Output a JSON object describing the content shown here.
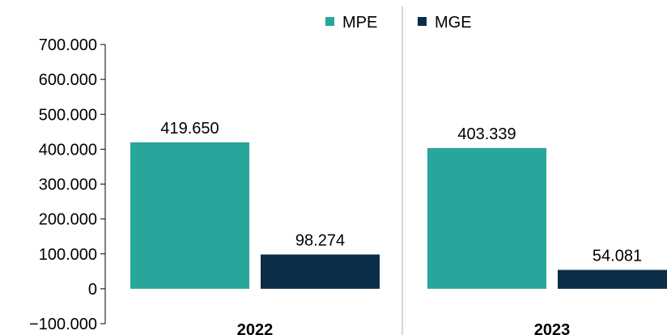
{
  "chart_data": {
    "type": "bar",
    "categories": [
      "2022",
      "2023"
    ],
    "series": [
      {
        "name": "MPE",
        "color": "#29a69b",
        "values": [
          419650,
          403339
        ],
        "value_labels": [
          "419.650",
          "403.339"
        ]
      },
      {
        "name": "MGE",
        "color": "#0b2d48",
        "values": [
          98274,
          54081
        ],
        "value_labels": [
          "98.274",
          "54.081"
        ]
      }
    ],
    "ylim": [
      -100000,
      700000
    ],
    "yticks": [
      {
        "value": -100000,
        "label": "−100.000"
      },
      0,
      {
        "value": 100000,
        "label": "100.000"
      },
      {
        "value": 200000,
        "label": "200.000"
      },
      {
        "value": 300000,
        "label": "300.000"
      },
      {
        "value": 400000,
        "label": "400.000"
      },
      {
        "value": 500000,
        "label": "500.000"
      },
      {
        "value": 600000,
        "label": "600.000"
      },
      {
        "value": 700000,
        "label": "700.000"
      }
    ],
    "legend": "top"
  }
}
